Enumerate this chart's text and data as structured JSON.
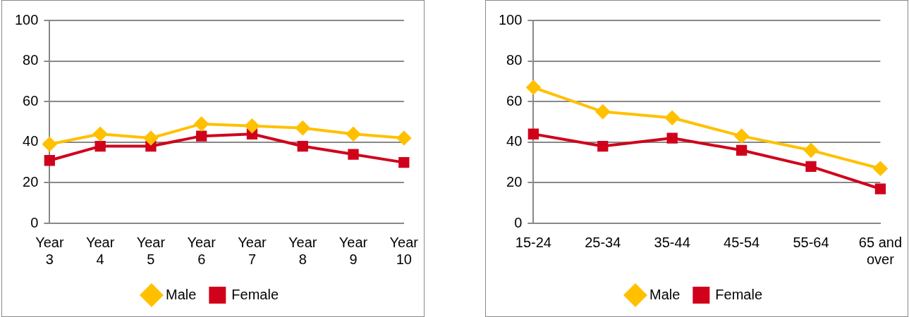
{
  "chart_data": [
    {
      "type": "line",
      "categories": [
        "Year 3",
        "Year 4",
        "Year 5",
        "Year 6",
        "Year 7",
        "Year 8",
        "Year 9",
        "Year 10"
      ],
      "series": [
        {
          "name": "Male",
          "color": "#ffc000",
          "marker": "diamond",
          "values": [
            39,
            44,
            42,
            49,
            48,
            47,
            44,
            42
          ]
        },
        {
          "name": "Female",
          "color": "#d0021b",
          "marker": "square",
          "values": [
            31,
            38,
            38,
            43,
            44,
            38,
            34,
            30
          ]
        }
      ],
      "ylim": [
        0,
        100
      ],
      "yticks": [
        0,
        20,
        40,
        60,
        80,
        100
      ],
      "grid": "y",
      "legend": "bottom"
    },
    {
      "type": "line",
      "categories": [
        "15-24",
        "25-34",
        "35-44",
        "45-54",
        "55-64",
        "65 and over"
      ],
      "series": [
        {
          "name": "Male",
          "color": "#ffc000",
          "marker": "diamond",
          "values": [
            67,
            55,
            52,
            43,
            36,
            27
          ]
        },
        {
          "name": "Female",
          "color": "#d0021b",
          "marker": "square",
          "values": [
            44,
            38,
            42,
            36,
            28,
            17
          ]
        }
      ],
      "ylim": [
        0,
        100
      ],
      "yticks": [
        0,
        20,
        40,
        60,
        80,
        100
      ],
      "grid": "y",
      "legend": "bottom"
    }
  ]
}
